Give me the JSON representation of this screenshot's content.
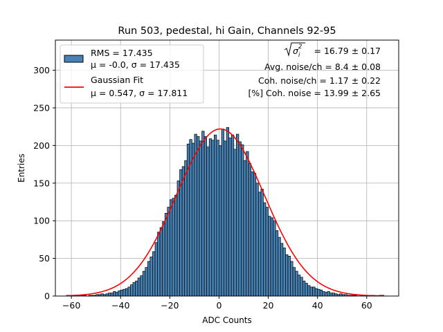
{
  "chart_data": {
    "type": "bar",
    "title": "Run 503, pedestal, hi Gain, Channels 92-95",
    "xlabel": "ADC Counts",
    "ylabel": "Entries",
    "xlim": [
      -66.5,
      73.0
    ],
    "ylim": [
      0,
      340
    ],
    "xticks": [
      -60,
      -40,
      -20,
      0,
      20,
      40,
      60
    ],
    "yticks": [
      0,
      50,
      100,
      150,
      200,
      250,
      300
    ],
    "grid": true,
    "legend_position": "top-left",
    "bar_color": "#4682b4",
    "fit_color": "#ff0000",
    "histogram": {
      "name": "RMS = 17.435",
      "stats_label": "μ = -0.0, σ = 17.435",
      "bin_start": -62,
      "bin_width": 1,
      "values": [
        1,
        0,
        0,
        1,
        0,
        0,
        1,
        1,
        0,
        1,
        1,
        1,
        2,
        2,
        3,
        2,
        3,
        4,
        4,
        6,
        5,
        7,
        8,
        9,
        10,
        12,
        15,
        18,
        20,
        24,
        27,
        33,
        38,
        46,
        52,
        59,
        71,
        85,
        91,
        99,
        110,
        118,
        128,
        130,
        134,
        153,
        168,
        172,
        180,
        202,
        208,
        203,
        215,
        212,
        206,
        219,
        212,
        198,
        209,
        207,
        214,
        207,
        200,
        222,
        206,
        224,
        210,
        214,
        195,
        215,
        205,
        201,
        180,
        192,
        176,
        165,
        163,
        150,
        138,
        142,
        124,
        118,
        106,
        104,
        100,
        87,
        78,
        70,
        64,
        55,
        53,
        46,
        38,
        33,
        28,
        25,
        20,
        17,
        14,
        12,
        12,
        10,
        9,
        8,
        6,
        5,
        6,
        4,
        4,
        3,
        2,
        3,
        2,
        2,
        1,
        1,
        1,
        1,
        0,
        0,
        1,
        0,
        0,
        0,
        1,
        0,
        0,
        1,
        1
      ]
    },
    "fit": {
      "name": "Gaussian Fit",
      "stats_label": "μ = 0.547, σ = 17.811",
      "mu": 0.547,
      "sigma": 17.811,
      "amplitude": 222,
      "x_range": [
        -62,
        67
      ]
    },
    "annotations": {
      "line1_value": "= 16.79 ± 0.17",
      "line2": "Avg. noise/ch = 8.4 ± 0.08",
      "line3": "Coh. noise/ch = 1.17 ± 0.22",
      "line4": "[%] Coh. noise = 13.99 ± 2.65"
    }
  }
}
